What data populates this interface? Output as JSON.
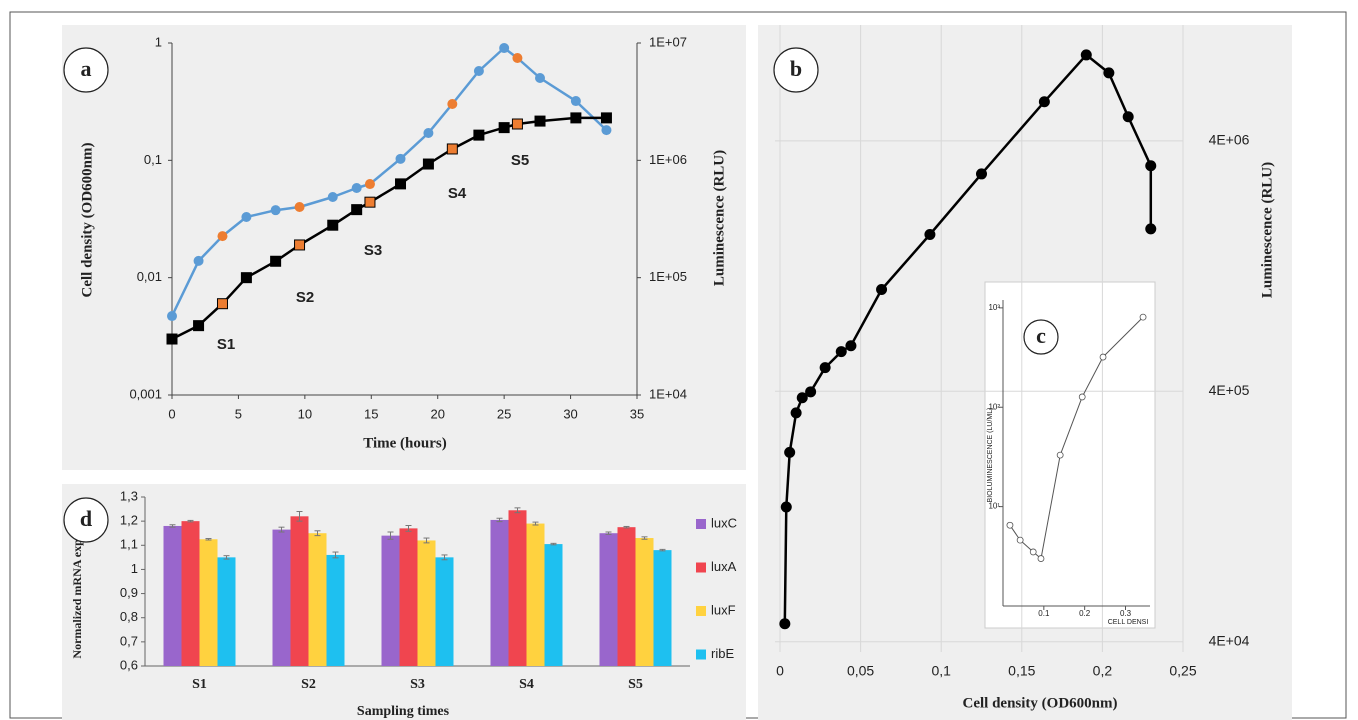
{
  "chart_data": [
    {
      "type": "line",
      "label": "a",
      "x": [
        0,
        2.0,
        3.8,
        5.6,
        7.8,
        9.6,
        12.1,
        13.9,
        14.9,
        17.2,
        19.3,
        21.1,
        23.1,
        25.0,
        26.0,
        27.7,
        30.4,
        32.7
      ],
      "series": [
        {
          "color": "#5b9bd5",
          "marker": "circle",
          "axis": "y2",
          "values": [
            47100,
            139000,
            226000,
            329000,
            376000,
            400000,
            487000,
            581000,
            628000,
            1030000,
            1710000,
            3020000,
            5770000,
            9060000,
            7450000,
            5030000,
            3200000,
            1810000
          ],
          "marker_colors": [
            "#5b9bd5",
            "#5b9bd5",
            "#ed7d31",
            "#5b9bd5",
            "#5b9bd5",
            "#ed7d31",
            "#5b9bd5",
            "#5b9bd5",
            "#ed7d31",
            "#5b9bd5",
            "#5b9bd5",
            "#ed7d31",
            "#5b9bd5",
            "#5b9bd5",
            "#ed7d31",
            "#5b9bd5",
            "#5b9bd5",
            "#5b9bd5"
          ]
        },
        {
          "color": "#000000",
          "marker": "square",
          "values": [
            0.003,
            0.0039,
            0.006,
            0.01,
            0.0138,
            0.019,
            0.028,
            0.038,
            0.044,
            0.063,
            0.093,
            0.125,
            0.164,
            0.19,
            0.204,
            0.216,
            0.23,
            0.23
          ],
          "marker_colors": [
            "#000000",
            "#000000",
            "#ed7d31",
            "#000000",
            "#000000",
            "#ed7d31",
            "#000000",
            "#000000",
            "#ed7d31",
            "#000000",
            "#000000",
            "#ed7d31",
            "#000000",
            "#000000",
            "#ed7d31",
            "#000000",
            "#000000",
            "#000000"
          ]
        }
      ],
      "xlim": [
        0,
        35
      ],
      "xticks": [
        0,
        5,
        10,
        15,
        20,
        25,
        30,
        35
      ],
      "ylog": true,
      "ylim": [
        0.001,
        1
      ],
      "yticks": [
        {
          "value": 0.001,
          "label": "0,001"
        },
        {
          "value": 0.01,
          "label": "0,01"
        },
        {
          "value": 0.1,
          "label": "0,1"
        },
        1
      ],
      "y2log": true,
      "y2lim": [
        10000,
        10000000
      ],
      "y2ticks": [
        {
          "value": 10000,
          "label": "1E+04"
        },
        {
          "value": 100000,
          "label": "1E+05"
        },
        {
          "value": 1000000,
          "label": "1E+06"
        },
        {
          "value": 10000000,
          "label": "1E+07"
        }
      ],
      "x_label": "Time (hours)",
      "y_label": "Cell density (OD600nm)",
      "y2_label": "Luminescence (RLU)",
      "annotations": [
        "S1",
        "S2",
        "S3",
        "S4",
        "S5"
      ]
    },
    {
      "type": "line",
      "label": "b",
      "x": [
        0.003,
        0.0039,
        0.006,
        0.01,
        0.0138,
        0.019,
        0.028,
        0.038,
        0.044,
        0.063,
        0.093,
        0.125,
        0.164,
        0.19,
        0.204,
        0.216,
        0.23,
        0.23
      ],
      "series": [
        {
          "color": "#000000",
          "marker": "circle",
          "values": [
            47200,
            138000,
            228000,
            328000,
            377000,
            398000,
            497000,
            576000,
            608000,
            1020000,
            1690000,
            2950000,
            5730000,
            8810000,
            7470000,
            4990000,
            3180000,
            1780000
          ]
        }
      ],
      "xlim": [
        0,
        0.25
      ],
      "xticks": [
        0,
        {
          "value": 0.05,
          "label": "0,05"
        },
        {
          "value": 0.1,
          "label": "0,1"
        },
        {
          "value": 0.15,
          "label": "0,15"
        },
        {
          "value": 0.2,
          "label": "0,2"
        },
        {
          "value": 0.25,
          "label": "0,25"
        }
      ],
      "ylog": true,
      "ylim": [
        36400,
        11600000
      ],
      "yticks": [
        {
          "value": 40000,
          "label": "4E+04"
        },
        {
          "value": 400000,
          "label": "4E+05"
        },
        {
          "value": 4000000,
          "label": "4E+06"
        }
      ],
      "grid": true,
      "x_label": "Cell density (OD600nm)",
      "y_label": "Luminescence (RLU)"
    },
    {
      "type": "line",
      "label": "c",
      "x": [
        0.017,
        0.042,
        0.074,
        0.093,
        0.14,
        0.194,
        0.245,
        0.343
      ],
      "series": [
        {
          "color": "#555555",
          "marker": "open-circle",
          "values": [
            6.5,
            4.6,
            3.5,
            3.0,
            33,
            127,
            320,
            807
          ]
        }
      ],
      "xlim": [
        0,
        0.36
      ],
      "xticks": [
        0.1,
        0.2,
        0.3
      ],
      "ylog": true,
      "ylim": [
        1,
        1200
      ],
      "yticks": [
        {
          "value": 10,
          "label": "10¹"
        },
        {
          "value": 100,
          "label": "10²"
        },
        {
          "value": 1000,
          "label": "10³"
        }
      ],
      "x_label": "CELL DENSI",
      "y_label": "BIOLUMINESCENCE (LU/ML)"
    },
    {
      "type": "bar",
      "label": "d",
      "categories": [
        "S1",
        "S2",
        "S3",
        "S4",
        "S5"
      ],
      "series": [
        {
          "name": "luxC",
          "color": "#9966cc",
          "values": [
            1.18,
            1.165,
            1.14,
            1.205,
            1.15
          ],
          "errors": [
            0.005,
            0.01,
            0.015,
            0.007,
            0.005
          ]
        },
        {
          "name": "luxA",
          "color": "#f0454f",
          "values": [
            1.2,
            1.22,
            1.17,
            1.245,
            1.175
          ],
          "errors": [
            0.003,
            0.02,
            0.012,
            0.01,
            0.003
          ]
        },
        {
          "name": "luxF",
          "color": "#ffd23f",
          "values": [
            1.125,
            1.15,
            1.12,
            1.19,
            1.13
          ],
          "errors": [
            0.003,
            0.01,
            0.01,
            0.006,
            0.005
          ]
        },
        {
          "name": "ribE",
          "color": "#1ec0f0",
          "values": [
            1.05,
            1.06,
            1.05,
            1.105,
            1.08
          ],
          "errors": [
            0.007,
            0.012,
            0.01,
            0.003,
            0.003
          ]
        }
      ],
      "ylim": [
        0.6,
        1.3
      ],
      "yticks": [
        {
          "value": 0.6,
          "label": "0,6"
        },
        {
          "value": 0.7,
          "label": "0,7"
        },
        {
          "value": 0.8,
          "label": "0,8"
        },
        {
          "value": 0.9,
          "label": "0,9"
        },
        1,
        {
          "value": 1.1,
          "label": "1,1"
        },
        {
          "value": 1.2,
          "label": "1,2"
        },
        {
          "value": 1.3,
          "label": "1,3"
        }
      ],
      "legend": "right",
      "x_label": "Sampling times",
      "y_label": "Normalized mRNA expression"
    }
  ]
}
